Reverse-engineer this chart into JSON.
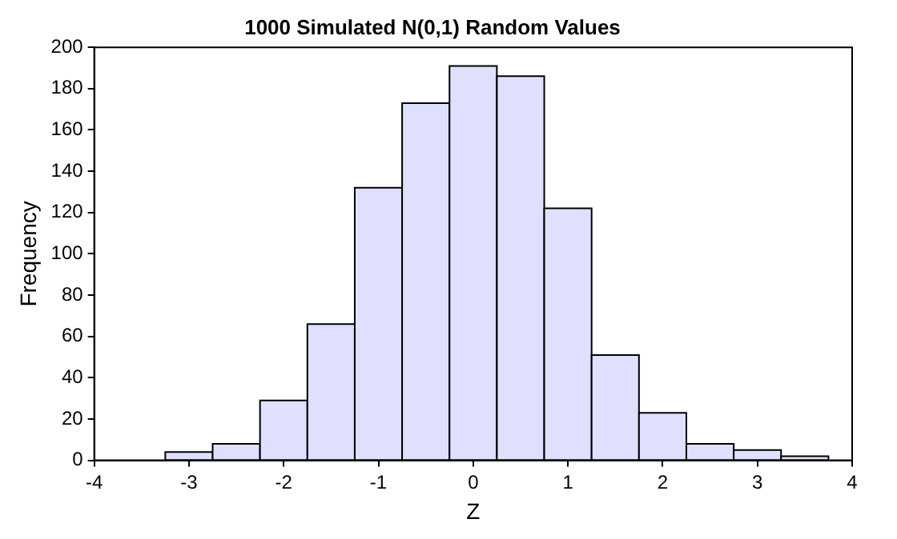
{
  "chart_data": {
    "type": "histogram",
    "title": "1000 Simulated N(0,1) Random Values",
    "xlabel": "Z",
    "ylabel": "Frequency",
    "bins": [
      -3.25,
      -2.75,
      -2.25,
      -1.75,
      -1.25,
      -0.75,
      -0.25,
      0.25,
      0.75,
      1.25,
      1.75,
      2.25,
      2.75,
      3.25,
      3.75
    ],
    "values": [
      4,
      8,
      29,
      66,
      132,
      173,
      191,
      186,
      122,
      51,
      23,
      8,
      5,
      2
    ],
    "color": "#dfe0fd",
    "xlim": [
      -4,
      4
    ],
    "xticks": [
      -4,
      -3,
      -2,
      -1,
      0,
      1,
      2,
      3,
      4
    ],
    "ylim": [
      0,
      200
    ],
    "yticks": [
      0,
      20,
      40,
      60,
      80,
      100,
      120,
      140,
      160,
      180,
      200
    ],
    "grid": false,
    "legend": false
  }
}
